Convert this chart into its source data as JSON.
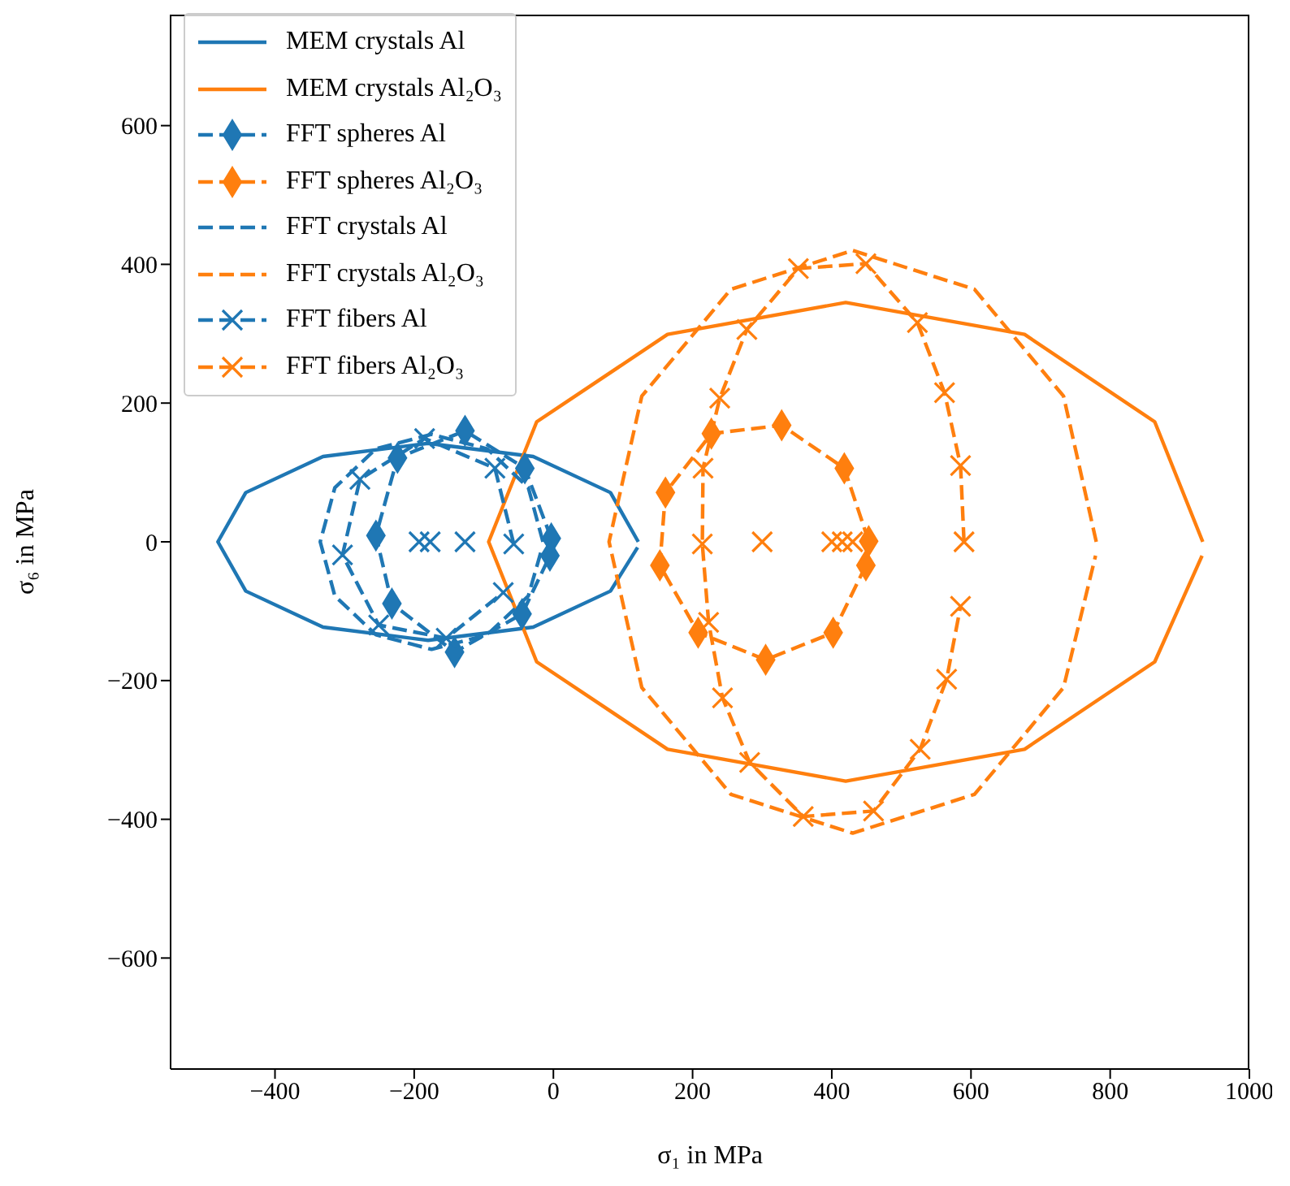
{
  "chart_data": {
    "type": "line",
    "xlabel": "σ₁ in MPa",
    "ylabel": "σ₆ in MPa",
    "xlim": [
      -550,
      1000
    ],
    "ylim": [
      -760,
      760
    ],
    "xticks": [
      -400,
      -200,
      0,
      200,
      400,
      600,
      800,
      1000
    ],
    "yticks": [
      -600,
      -400,
      -200,
      0,
      200,
      400,
      600
    ],
    "legend": "top left",
    "series": [
      {
        "name": "MEM crystals Al",
        "color": "#1f77b4",
        "line_style": "solid",
        "marker": "none",
        "x": [
          122,
          82,
          -29,
          -180,
          -331,
          -442,
          -482,
          -442,
          -331,
          -180,
          -29,
          82,
          121
        ],
        "values": [
          0,
          71,
          123,
          142,
          123,
          71,
          0,
          -71,
          -123,
          -142,
          -123,
          -71,
          -8
        ]
      },
      {
        "name": "MEM crystals Al₂O₃",
        "color": "#ff7f0e",
        "line_style": "solid",
        "marker": "none",
        "x": [
          933,
          864,
          677,
          420,
          164,
          -24,
          -93,
          -24,
          164,
          420,
          677,
          864,
          932
        ],
        "values": [
          0,
          173,
          299,
          345,
          299,
          173,
          0,
          -173,
          -299,
          -345,
          -299,
          -173,
          -20
        ]
      },
      {
        "name": "FFT spheres Al",
        "color": "#1f77b4",
        "line_style": "dashed",
        "marker": "diamond",
        "x": [
          -3,
          -41,
          -127,
          -224,
          -255,
          -232,
          -142,
          -45,
          -5
        ],
        "values": [
          5,
          106,
          160,
          121,
          9,
          -89,
          -159,
          -104,
          -20
        ]
      },
      {
        "name": "FFT spheres Al₂O₃",
        "color": "#ff7f0e",
        "line_style": "dashed",
        "marker": "diamond",
        "x": [
          453,
          418,
          328,
          227,
          161,
          153,
          208,
          305,
          402,
          449
        ],
        "values": [
          1,
          106,
          168,
          156,
          71,
          -34,
          -131,
          -170,
          -131,
          -34
        ]
      },
      {
        "name": "FFT crystals Al",
        "color": "#1f77b4",
        "line_style": "dashed",
        "marker": "none",
        "x": [
          -15,
          -36,
          -95,
          -175,
          -255,
          -314,
          -335,
          -314,
          -255,
          -175,
          -95,
          -36,
          -16
        ],
        "values": [
          0,
          78,
          134,
          155,
          134,
          78,
          0,
          -78,
          -134,
          -155,
          -134,
          -78,
          -8
        ]
      },
      {
        "name": "FFT crystals Al₂O₃",
        "color": "#ff7f0e",
        "line_style": "dashed",
        "marker": "none",
        "x": [
          780,
          733,
          605,
          430,
          255,
          127,
          80,
          127,
          255,
          430,
          605,
          733,
          779
        ],
        "values": [
          0,
          210,
          364,
          420,
          364,
          210,
          0,
          -210,
          -364,
          -420,
          -364,
          -210,
          -20
        ]
      },
      {
        "name": "FFT fibers Al",
        "color": "#1f77b4",
        "line_style": "dashed",
        "marker": "cross",
        "x": [
          -57,
          -84,
          -185,
          -278,
          -303,
          -251,
          -154,
          -72
        ],
        "values": [
          -3,
          106,
          149,
          90,
          -19,
          -120,
          -139,
          -73
        ]
      },
      {
        "name": "FFT fibers Al₂O₃",
        "color": "#ff7f0e",
        "line_style": "dashed",
        "marker": "cross",
        "x": [
          590,
          585,
          562,
          523,
          449,
          352,
          278,
          239,
          215,
          214,
          223,
          243,
          282,
          359,
          460,
          527,
          565,
          585
        ],
        "values": [
          0,
          110,
          215,
          316,
          401,
          394,
          306,
          207,
          106,
          -3,
          -116,
          -225,
          -318,
          -396,
          -388,
          -299,
          -198,
          -93
        ]
      },
      {
        "type": "scatter",
        "color": "#1f77b4",
        "marker": "cross",
        "x": [
          -193,
          -177,
          -127
        ],
        "values": [
          0,
          0,
          0
        ]
      },
      {
        "type": "scatter",
        "color": "#ff7f0e",
        "marker": "cross",
        "x": [
          300,
          400,
          415,
          430
        ],
        "values": [
          0,
          0,
          0,
          0
        ]
      }
    ]
  }
}
